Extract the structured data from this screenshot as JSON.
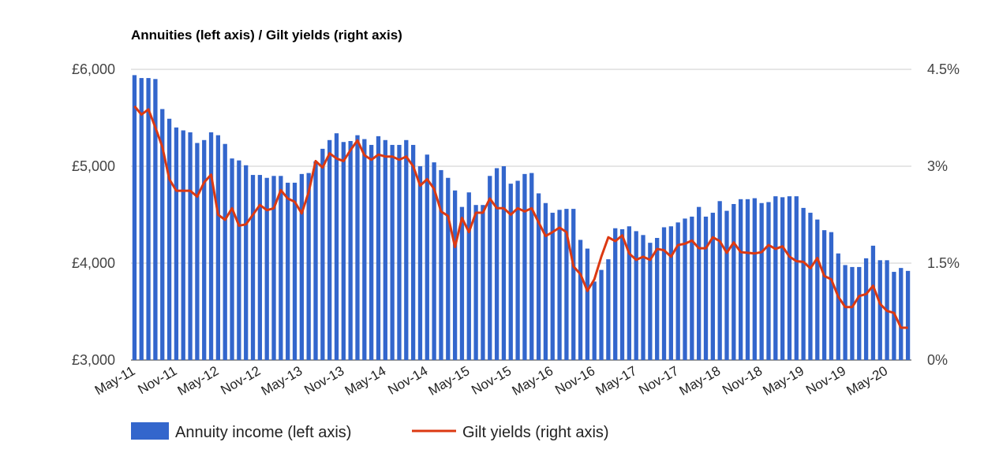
{
  "chart_data": {
    "type": "bar+line",
    "title": "Annuities (left axis) / Gilt yields (right axis)",
    "x_tick_labels": [
      "May-11",
      "Nov-11",
      "May-12",
      "Nov-12",
      "May-13",
      "Nov-13",
      "May-14",
      "Nov-14",
      "May-15",
      "Nov-15",
      "May-16",
      "Nov-16",
      "May-17",
      "Nov-17",
      "May-18",
      "Nov-18",
      "May-19",
      "Nov-19",
      "May-20"
    ],
    "x_start": "May-11",
    "x_end": "Jun-20",
    "y_left": {
      "ticks": [
        "£3,000",
        "£4,000",
        "£5,000",
        "£6,000"
      ],
      "min": 3000,
      "max": 6000
    },
    "y_right": {
      "ticks": [
        "0%",
        "1.5%",
        "3%",
        "4.5%"
      ],
      "min": 0,
      "max": 4.5
    },
    "grid": true,
    "legend_position": "bottom-left",
    "series": [
      {
        "name": "Annuity income (left axis)",
        "type": "bar",
        "axis": "left",
        "color": "#3366cc",
        "values": [
          5940,
          5910,
          5910,
          5900,
          5590,
          5490,
          5400,
          5370,
          5350,
          5240,
          5270,
          5350,
          5320,
          5230,
          5080,
          5060,
          5010,
          4910,
          4910,
          4880,
          4900,
          4900,
          4830,
          4830,
          4920,
          4930,
          5050,
          5180,
          5270,
          5340,
          5250,
          5260,
          5320,
          5280,
          5220,
          5310,
          5270,
          5220,
          5220,
          5270,
          5220,
          5000,
          5120,
          5040,
          4960,
          4880,
          4750,
          4580,
          4730,
          4600,
          4600,
          4900,
          4980,
          5000,
          4820,
          4850,
          4920,
          4930,
          4720,
          4620,
          4520,
          4550,
          4560,
          4560,
          4240,
          4150,
          3810,
          3930,
          4040,
          4360,
          4350,
          4380,
          4330,
          4290,
          4210,
          4260,
          4370,
          4380,
          4420,
          4460,
          4480,
          4580,
          4480,
          4520,
          4640,
          4540,
          4610,
          4660,
          4660,
          4670,
          4620,
          4630,
          4690,
          4680,
          4690,
          4690,
          4570,
          4520,
          4450,
          4340,
          4320,
          4100,
          3980,
          3960,
          3960,
          4050,
          4180,
          4030,
          4030,
          3910,
          3950,
          3920
        ]
      },
      {
        "name": "Gilt yields (right axis)",
        "type": "line",
        "axis": "right",
        "color": "#dc3912",
        "values": [
          3.93,
          3.8,
          3.88,
          3.6,
          3.3,
          2.8,
          2.62,
          2.62,
          2.62,
          2.53,
          2.75,
          2.87,
          2.25,
          2.17,
          2.35,
          2.08,
          2.1,
          2.25,
          2.4,
          2.32,
          2.35,
          2.63,
          2.5,
          2.45,
          2.27,
          2.6,
          3.08,
          2.98,
          3.2,
          3.12,
          3.08,
          3.25,
          3.4,
          3.17,
          3.1,
          3.18,
          3.15,
          3.15,
          3.1,
          3.15,
          3.0,
          2.7,
          2.8,
          2.65,
          2.3,
          2.23,
          1.75,
          2.2,
          1.98,
          2.28,
          2.28,
          2.5,
          2.35,
          2.35,
          2.25,
          2.35,
          2.3,
          2.35,
          2.13,
          1.92,
          1.98,
          2.05,
          1.98,
          1.45,
          1.33,
          1.07,
          1.25,
          1.6,
          1.9,
          1.84,
          1.93,
          1.65,
          1.55,
          1.6,
          1.55,
          1.72,
          1.7,
          1.6,
          1.78,
          1.8,
          1.85,
          1.73,
          1.73,
          1.9,
          1.84,
          1.66,
          1.82,
          1.67,
          1.66,
          1.65,
          1.67,
          1.78,
          1.72,
          1.76,
          1.6,
          1.53,
          1.52,
          1.42,
          1.58,
          1.3,
          1.25,
          0.98,
          0.82,
          0.82,
          0.99,
          1.02,
          1.15,
          0.87,
          0.76,
          0.73,
          0.5,
          0.5
        ]
      }
    ]
  }
}
